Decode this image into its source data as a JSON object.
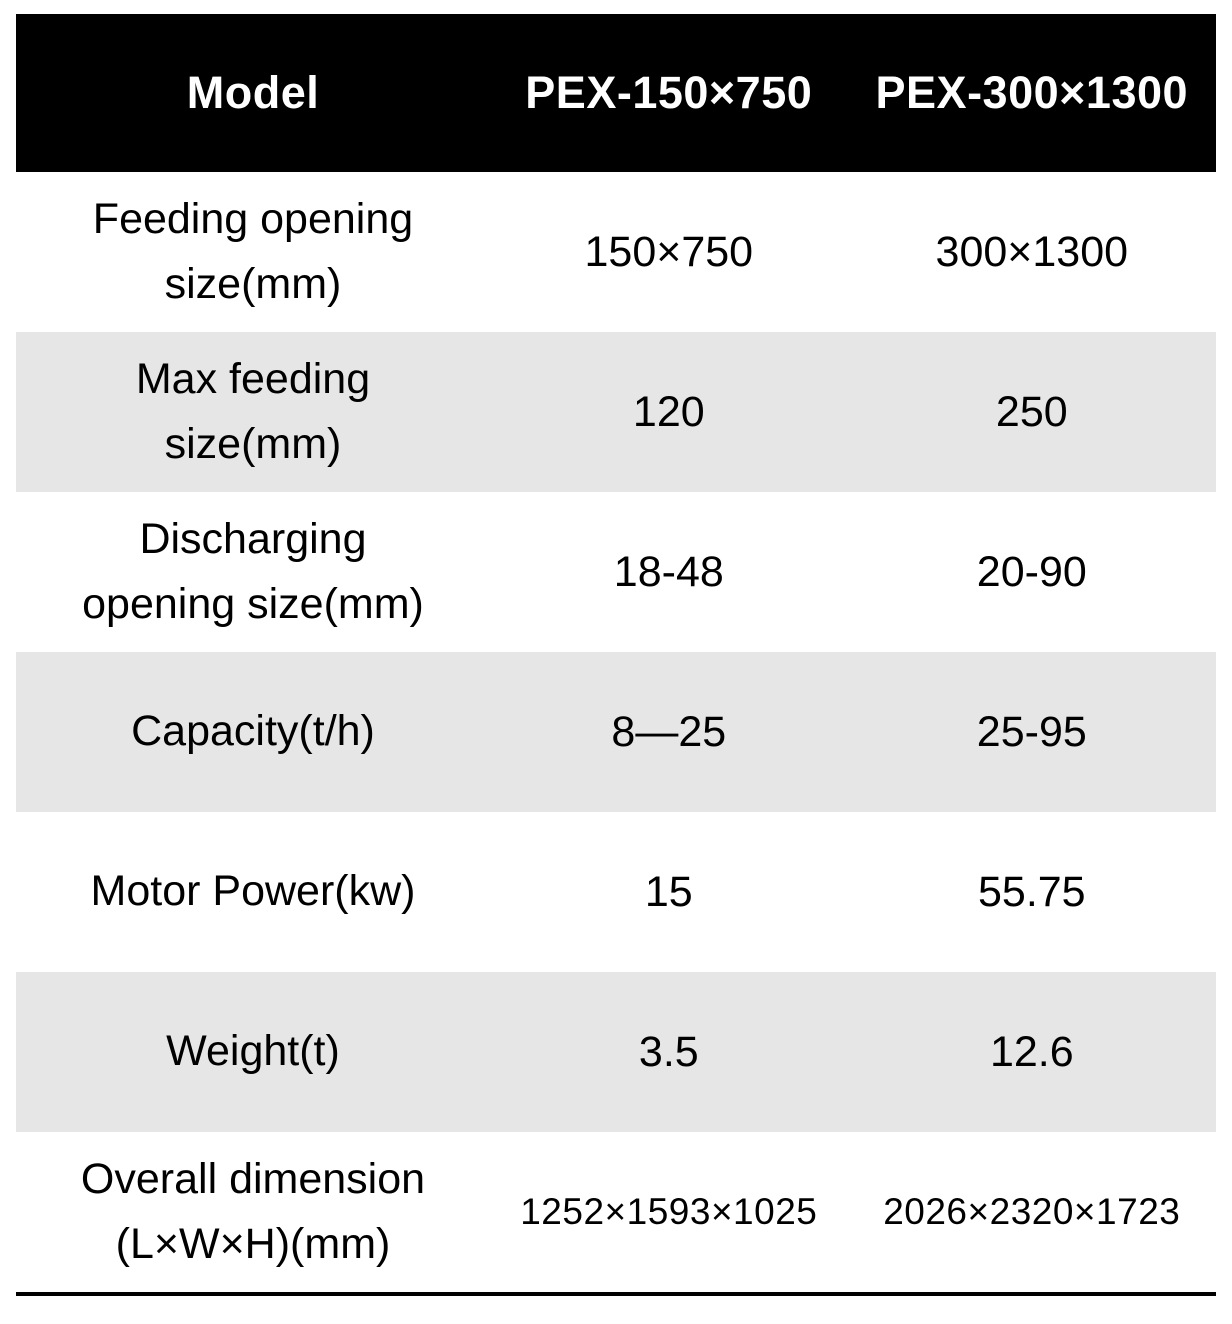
{
  "table": {
    "header": [
      "Model",
      "PEX-150×750",
      "PEX-300×1300"
    ],
    "rows": [
      {
        "lines": [
          "Feeding opening",
          "size(mm)"
        ],
        "values": [
          "150×750",
          "300×1300"
        ]
      },
      {
        "lines": [
          "Max feeding",
          "size(mm)"
        ],
        "values": [
          "120",
          "250"
        ]
      },
      {
        "lines": [
          "Discharging",
          "opening size(mm)"
        ],
        "values": [
          "18-48",
          "20-90"
        ]
      },
      {
        "lines": [
          "Capacity(t/h)"
        ],
        "values": [
          "8—25",
          "25-95"
        ]
      },
      {
        "lines": [
          "Motor Power(kw)"
        ],
        "values": [
          "15",
          "55.75"
        ]
      },
      {
        "lines": [
          "Weight(t)"
        ],
        "values": [
          "3.5",
          "12.6"
        ]
      },
      {
        "lines": [
          "Overall dimension",
          "(L×W×H)(mm)"
        ],
        "values": [
          "1252×1593×1025",
          "2026×2320×1723"
        ]
      }
    ],
    "colors": {
      "header_bg": "#000000",
      "header_text": "#ffffff",
      "shaded_row_bg": "#e6e6e6",
      "row_bg": "#ffffff",
      "text": "#000000",
      "bottom_rule": "#000000"
    }
  },
  "chart_data": {
    "type": "table",
    "title": "",
    "columns": [
      "Model",
      "PEX-150×750",
      "PEX-300×1300"
    ],
    "rows": [
      [
        "Feeding opening size(mm)",
        "150×750",
        "300×1300"
      ],
      [
        "Max feeding size(mm)",
        "120",
        "250"
      ],
      [
        "Discharging opening size(mm)",
        "18-48",
        "20-90"
      ],
      [
        "Capacity(t/h)",
        "8—25",
        "25-95"
      ],
      [
        "Motor Power(kw)",
        "15",
        "55.75"
      ],
      [
        "Weight(t)",
        "3.5",
        "12.6"
      ],
      [
        "Overall dimension (L×W×H)(mm)",
        "1252×1593×1025",
        "2026×2320×1723"
      ]
    ],
    "layout": {
      "header_style": "black background, white bold text",
      "zebra_rows": "rows 2, 4, 6 shaded light gray",
      "grid": false,
      "bottom_rule": true
    }
  }
}
